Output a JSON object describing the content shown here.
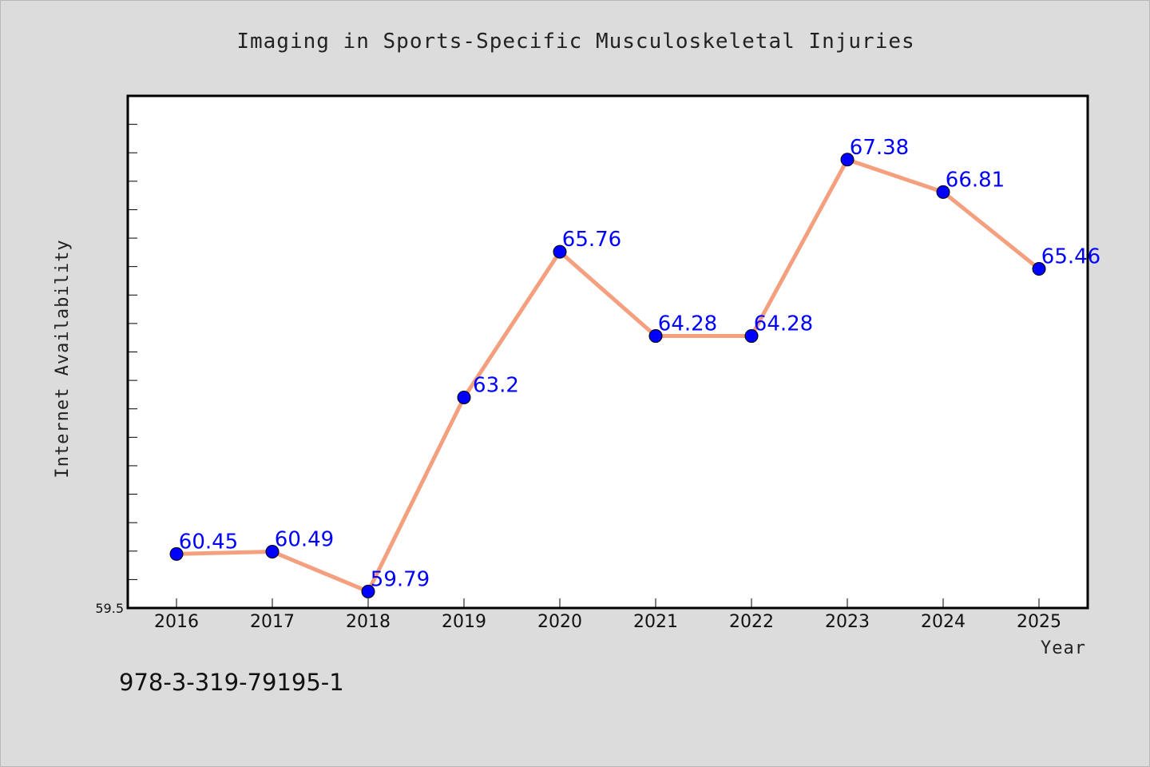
{
  "chart_data": {
    "type": "line",
    "title": "Imaging in Sports-Specific Musculoskeletal Injuries",
    "xlabel": "Year",
    "ylabel": "Internet Availability",
    "categories": [
      "2016",
      "2017",
      "2018",
      "2019",
      "2020",
      "2021",
      "2022",
      "2023",
      "2024",
      "2025"
    ],
    "series": [
      {
        "values": [
          60.45,
          60.49,
          59.79,
          63.2,
          65.76,
          64.28,
          64.28,
          67.38,
          66.81,
          65.46
        ]
      }
    ],
    "data_labels": [
      "60.45",
      "60.49",
      "59.79",
      "63.2",
      "65.76",
      "64.28",
      "64.28",
      "67.38",
      "66.81",
      "65.46"
    ],
    "ylim": [
      59.5,
      68.5
    ],
    "y_min_label": "59.5",
    "grid": false,
    "legend": "none",
    "colors": {
      "line": "#f4a07f",
      "marker": "#0000ff",
      "data_label": "#0000ff",
      "plot_background": "#ffffff",
      "figure_background": "#dcdcdc"
    }
  },
  "footer": {
    "isbn": "978-3-319-79195-1"
  }
}
